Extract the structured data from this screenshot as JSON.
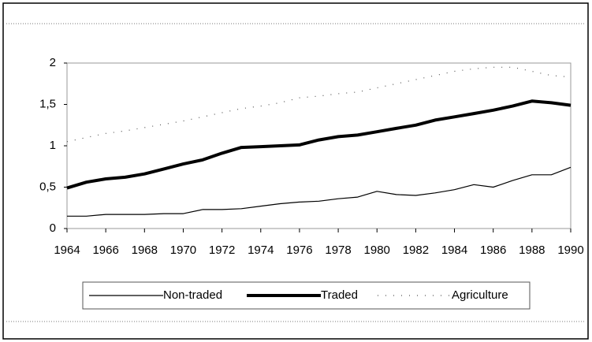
{
  "chart_data": {
    "type": "line",
    "x": [
      1964,
      1965,
      1966,
      1967,
      1968,
      1969,
      1970,
      1971,
      1972,
      1973,
      1974,
      1975,
      1976,
      1977,
      1978,
      1979,
      1980,
      1981,
      1982,
      1983,
      1984,
      1985,
      1986,
      1987,
      1988,
      1989,
      1990
    ],
    "series": [
      {
        "name": "Non-traded",
        "color": "#000000",
        "style": "thin",
        "values": [
          0.15,
          0.15,
          0.17,
          0.17,
          0.17,
          0.18,
          0.18,
          0.23,
          0.23,
          0.24,
          0.27,
          0.3,
          0.32,
          0.33,
          0.36,
          0.38,
          0.45,
          0.41,
          0.4,
          0.43,
          0.47,
          0.53,
          0.5,
          0.58,
          0.65,
          0.65,
          0.74
        ]
      },
      {
        "name": "Traded",
        "color": "#000000",
        "style": "thick",
        "values": [
          0.49,
          0.56,
          0.6,
          0.62,
          0.66,
          0.72,
          0.78,
          0.83,
          0.91,
          0.98,
          0.99,
          1.0,
          1.01,
          1.07,
          1.11,
          1.13,
          1.17,
          1.21,
          1.25,
          1.31,
          1.35,
          1.39,
          1.43,
          1.48,
          1.54,
          1.52,
          1.49
        ]
      },
      {
        "name": "Agriculture",
        "color": "#555555",
        "style": "dotted",
        "values": [
          1.05,
          1.1,
          1.15,
          1.18,
          1.22,
          1.26,
          1.3,
          1.35,
          1.4,
          1.45,
          1.48,
          1.52,
          1.58,
          1.6,
          1.63,
          1.65,
          1.7,
          1.75,
          1.8,
          1.85,
          1.9,
          1.93,
          1.95,
          1.95,
          1.9,
          1.85,
          1.83
        ]
      }
    ],
    "xlim": [
      1964,
      1990
    ],
    "xticks": [
      1964,
      1966,
      1968,
      1970,
      1972,
      1974,
      1976,
      1978,
      1980,
      1982,
      1984,
      1986,
      1988,
      1990
    ],
    "ylim": [
      0,
      2
    ],
    "yticks": [
      0,
      {
        "value": 0.5,
        "label": "0,5"
      },
      1,
      {
        "value": 1.5,
        "label": "1,5"
      },
      2
    ],
    "grid": false,
    "legend": "bottom"
  }
}
